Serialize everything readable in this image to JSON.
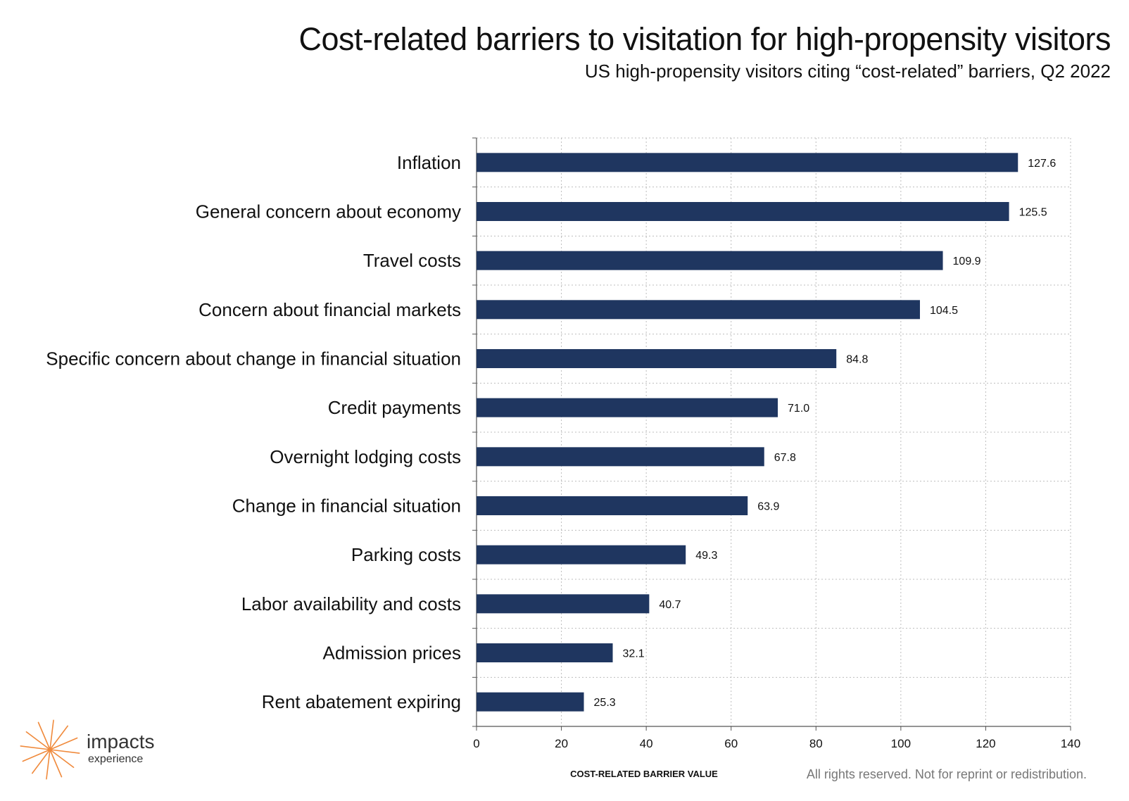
{
  "header": {
    "title": "Cost-related barriers to visitation for high-propensity visitors",
    "subtitle": "US high-propensity visitors citing “cost-related” barriers, Q2 2022"
  },
  "brand": {
    "name": "impacts",
    "tagline": "experience",
    "accent_color": "#f08a3c"
  },
  "footer": {
    "copyright": "All rights reserved. Not for reprint or redistribution."
  },
  "chart_data": {
    "type": "bar",
    "orientation": "horizontal",
    "bar_color": "#1f3660",
    "categories": [
      "Inflation",
      "General concern about economy",
      "Travel costs",
      "Concern about financial markets",
      "Specific concern about change in financial situation",
      "Credit payments",
      "Overnight lodging costs",
      "Change in financial situation",
      "Parking costs",
      "Labor availability and costs",
      "Admission prices",
      "Rent abatement expiring"
    ],
    "values": [
      127.6,
      125.5,
      109.9,
      104.5,
      84.8,
      71.0,
      67.8,
      63.9,
      49.3,
      40.7,
      32.1,
      25.3
    ],
    "value_labels": [
      "127.6",
      "125.5",
      "109.9",
      "104.5",
      "84.8",
      "71.0",
      "67.8",
      "63.9",
      "49.3",
      "40.7",
      "32.1",
      "25.3"
    ],
    "xlabel": "COST-RELATED BARRIER VALUE",
    "xlim": [
      0,
      140
    ],
    "xticks": [
      0,
      20,
      40,
      60,
      80,
      100,
      120,
      140
    ],
    "grid": true,
    "legend": "none"
  }
}
